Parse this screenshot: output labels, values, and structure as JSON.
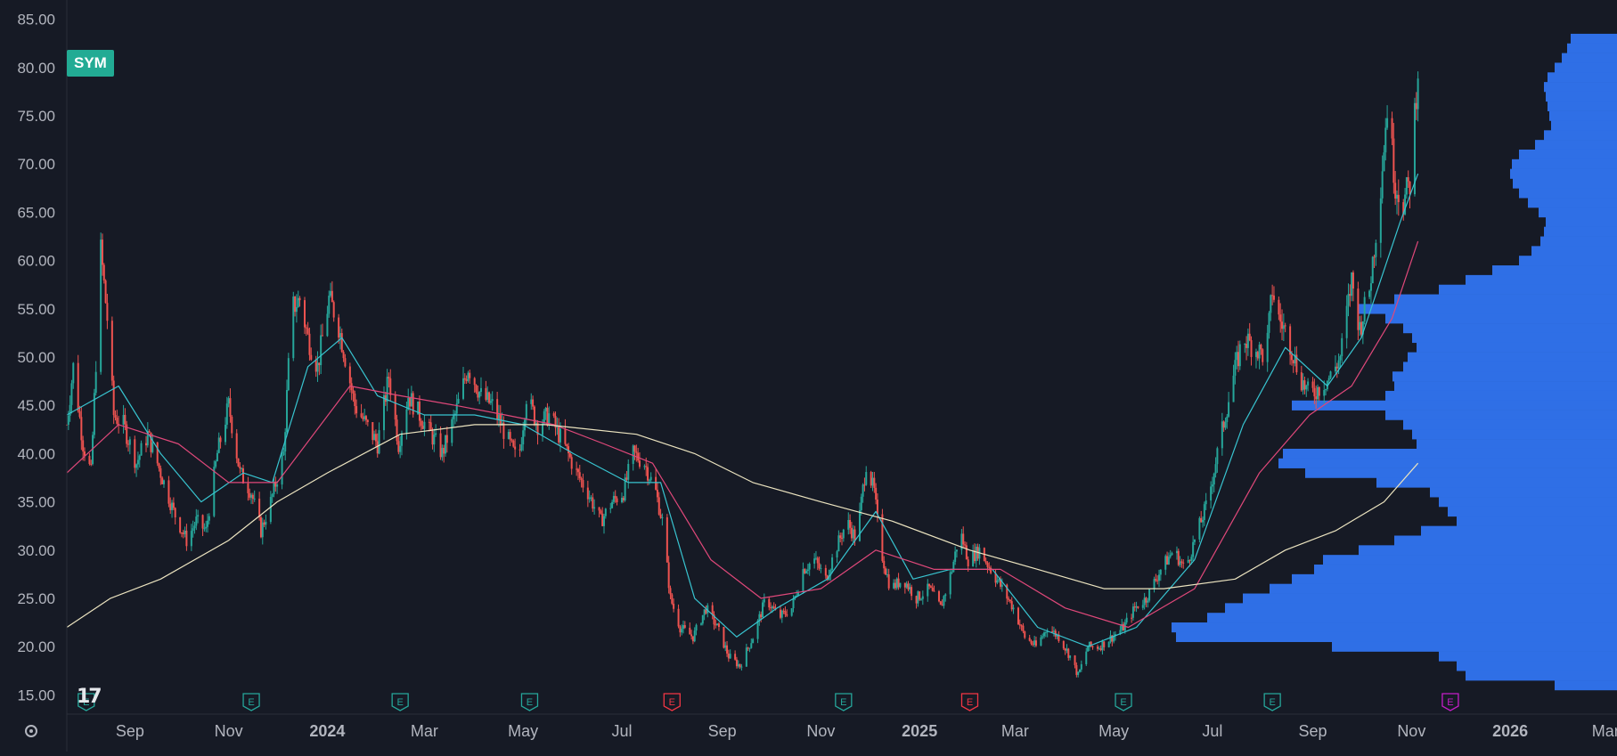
{
  "symbol": {
    "label": "SYM"
  },
  "colors": {
    "background": "#161a25",
    "up": "#26a69a",
    "down": "#ef5350",
    "ma_fast": "#38c4d0",
    "ma_mid": "#e0487a",
    "ma_slow": "#ece4c0",
    "volume_profile": "#2f6fe6",
    "earnings_past": "#26a69a",
    "earnings_negative": "#f23645",
    "earnings_upcoming": "#c41ec7",
    "axis_text": "#b2b5be"
  },
  "icons": {
    "logo": "tradingview-logo-icon",
    "settings": "settings-icon"
  },
  "chart_data": {
    "type": "candlestick",
    "y_axis": {
      "ylim": [
        13,
        87
      ],
      "ticks": [
        "85.00",
        "80.00",
        "75.00",
        "70.00",
        "65.00",
        "60.00",
        "55.00",
        "50.00",
        "45.00",
        "40.00",
        "35.00",
        "30.00",
        "25.00",
        "20.00",
        "15.00"
      ]
    },
    "x_axis": {
      "range": [
        "2023-07-24",
        "2026-03-08"
      ],
      "ticks": [
        {
          "date": "2023-09-01",
          "label": "Sep",
          "bold": false
        },
        {
          "date": "2023-11-01",
          "label": "Nov",
          "bold": false
        },
        {
          "date": "2024-01-01",
          "label": "2024",
          "bold": true
        },
        {
          "date": "2024-03-01",
          "label": "Mar",
          "bold": false
        },
        {
          "date": "2024-05-01",
          "label": "May",
          "bold": false
        },
        {
          "date": "2024-07-01",
          "label": "Jul",
          "bold": false
        },
        {
          "date": "2024-09-01",
          "label": "Sep",
          "bold": false
        },
        {
          "date": "2024-11-01",
          "label": "Nov",
          "bold": false
        },
        {
          "date": "2025-01-01",
          "label": "2025",
          "bold": true
        },
        {
          "date": "2025-03-01",
          "label": "Mar",
          "bold": false
        },
        {
          "date": "2025-05-01",
          "label": "May",
          "bold": false
        },
        {
          "date": "2025-07-01",
          "label": "Jul",
          "bold": false
        },
        {
          "date": "2025-09-01",
          "label": "Sep",
          "bold": false
        },
        {
          "date": "2025-11-01",
          "label": "Nov",
          "bold": false
        },
        {
          "date": "2026-01-01",
          "label": "2026",
          "bold": true
        },
        {
          "date": "2026-03-01",
          "label": "Mar",
          "bold": false
        }
      ]
    },
    "price_path": [
      [
        "2023-07-24",
        43
      ],
      [
        "2023-07-28",
        49
      ],
      [
        "2023-08-03",
        41
      ],
      [
        "2023-08-08",
        38
      ],
      [
        "2023-08-14",
        61
      ],
      [
        "2023-08-18",
        54
      ],
      [
        "2023-08-22",
        44
      ],
      [
        "2023-08-28",
        43
      ],
      [
        "2023-09-05",
        39
      ],
      [
        "2023-09-12",
        42
      ],
      [
        "2023-09-20",
        38
      ],
      [
        "2023-09-28",
        34
      ],
      [
        "2023-10-06",
        31
      ],
      [
        "2023-10-12",
        33
      ],
      [
        "2023-10-18",
        32
      ],
      [
        "2023-10-25",
        40
      ],
      [
        "2023-11-01",
        45
      ],
      [
        "2023-11-08",
        38
      ],
      [
        "2023-11-15",
        36
      ],
      [
        "2023-11-21",
        32
      ],
      [
        "2023-11-27",
        35
      ],
      [
        "2023-12-05",
        40
      ],
      [
        "2023-12-10",
        55
      ],
      [
        "2023-12-15",
        56
      ],
      [
        "2023-12-20",
        52
      ],
      [
        "2023-12-26",
        49
      ],
      [
        "2024-01-02",
        56
      ],
      [
        "2024-01-07",
        54
      ],
      [
        "2024-01-12",
        50
      ],
      [
        "2024-01-18",
        45
      ],
      [
        "2024-01-25",
        43
      ],
      [
        "2024-02-01",
        41
      ],
      [
        "2024-02-08",
        48
      ],
      [
        "2024-02-14",
        41
      ],
      [
        "2024-02-20",
        46
      ],
      [
        "2024-02-27",
        44
      ],
      [
        "2024-03-05",
        42
      ],
      [
        "2024-03-12",
        40
      ],
      [
        "2024-03-20",
        44
      ],
      [
        "2024-03-28",
        49
      ],
      [
        "2024-04-05",
        46
      ],
      [
        "2024-04-12",
        45
      ],
      [
        "2024-04-20",
        42
      ],
      [
        "2024-04-28",
        39
      ],
      [
        "2024-05-03",
        46
      ],
      [
        "2024-05-10",
        43
      ],
      [
        "2024-05-17",
        44
      ],
      [
        "2024-05-26",
        41
      ],
      [
        "2024-06-03",
        38
      ],
      [
        "2024-06-10",
        36
      ],
      [
        "2024-06-18",
        33
      ],
      [
        "2024-06-25",
        35
      ],
      [
        "2024-07-02",
        36
      ],
      [
        "2024-07-08",
        40
      ],
      [
        "2024-07-15",
        39
      ],
      [
        "2024-07-22",
        36
      ],
      [
        "2024-07-26",
        33
      ],
      [
        "2024-07-31",
        25
      ],
      [
        "2024-08-06",
        22
      ],
      [
        "2024-08-14",
        21
      ],
      [
        "2024-08-22",
        24
      ],
      [
        "2024-08-29",
        22
      ],
      [
        "2024-09-05",
        19
      ],
      [
        "2024-09-12",
        18
      ],
      [
        "2024-09-20",
        21
      ],
      [
        "2024-09-28",
        25
      ],
      [
        "2024-10-06",
        23
      ],
      [
        "2024-10-14",
        24
      ],
      [
        "2024-10-21",
        28
      ],
      [
        "2024-10-28",
        29
      ],
      [
        "2024-11-04",
        27
      ],
      [
        "2024-11-10",
        30
      ],
      [
        "2024-11-17",
        33
      ],
      [
        "2024-11-23",
        31
      ],
      [
        "2024-11-29",
        39
      ],
      [
        "2024-12-04",
        36
      ],
      [
        "2024-12-08",
        30
      ],
      [
        "2024-12-14",
        26
      ],
      [
        "2024-12-22",
        27
      ],
      [
        "2024-12-30",
        25
      ],
      [
        "2025-01-07",
        26
      ],
      [
        "2025-01-14",
        24
      ],
      [
        "2025-01-21",
        28
      ],
      [
        "2025-01-26",
        32
      ],
      [
        "2025-01-31",
        29
      ],
      [
        "2025-02-07",
        30
      ],
      [
        "2025-02-14",
        28
      ],
      [
        "2025-02-21",
        26
      ],
      [
        "2025-02-28",
        24
      ],
      [
        "2025-03-07",
        21
      ],
      [
        "2025-03-14",
        20
      ],
      [
        "2025-03-21",
        22
      ],
      [
        "2025-03-28",
        21
      ],
      [
        "2025-04-04",
        19
      ],
      [
        "2025-04-09",
        17
      ],
      [
        "2025-04-15",
        20
      ],
      [
        "2025-04-22",
        20
      ],
      [
        "2025-04-30",
        21
      ],
      [
        "2025-05-07",
        22
      ],
      [
        "2025-05-14",
        24
      ],
      [
        "2025-05-21",
        25
      ],
      [
        "2025-05-30",
        28
      ],
      [
        "2025-06-07",
        30
      ],
      [
        "2025-06-14",
        28
      ],
      [
        "2025-06-22",
        32
      ],
      [
        "2025-06-28",
        35
      ],
      [
        "2025-07-04",
        40
      ],
      [
        "2025-07-09",
        44
      ],
      [
        "2025-07-14",
        48
      ],
      [
        "2025-07-20",
        52
      ],
      [
        "2025-07-27",
        51
      ],
      [
        "2025-08-03",
        50
      ],
      [
        "2025-08-07",
        57
      ],
      [
        "2025-08-11",
        54
      ],
      [
        "2025-08-17",
        52
      ],
      [
        "2025-08-24",
        48
      ],
      [
        "2025-08-30",
        46
      ],
      [
        "2025-09-06",
        47
      ],
      [
        "2025-09-12",
        48
      ],
      [
        "2025-09-18",
        50
      ],
      [
        "2025-09-25",
        58
      ],
      [
        "2025-09-30",
        53
      ],
      [
        "2025-10-06",
        57
      ],
      [
        "2025-10-12",
        66
      ],
      [
        "2025-10-17",
        76
      ],
      [
        "2025-10-22",
        68
      ],
      [
        "2025-10-27",
        66
      ],
      [
        "2025-10-31",
        68
      ],
      [
        "2025-11-05",
        80
      ]
    ],
    "moving_averages": [
      {
        "color_key": "ma_fast",
        "points": [
          [
            "2023-07-24",
            44
          ],
          [
            "2023-08-25",
            47
          ],
          [
            "2023-09-20",
            40
          ],
          [
            "2023-10-15",
            35
          ],
          [
            "2023-11-10",
            38
          ],
          [
            "2023-11-28",
            37
          ],
          [
            "2023-12-20",
            49
          ],
          [
            "2024-01-10",
            52
          ],
          [
            "2024-02-01",
            46
          ],
          [
            "2024-03-01",
            44
          ],
          [
            "2024-04-01",
            44
          ],
          [
            "2024-05-01",
            43
          ],
          [
            "2024-06-01",
            40
          ],
          [
            "2024-07-05",
            37
          ],
          [
            "2024-07-25",
            37
          ],
          [
            "2024-08-15",
            25
          ],
          [
            "2024-09-10",
            21
          ],
          [
            "2024-10-05",
            24
          ],
          [
            "2024-11-05",
            27
          ],
          [
            "2024-12-05",
            34
          ],
          [
            "2024-12-28",
            27
          ],
          [
            "2025-01-20",
            28
          ],
          [
            "2025-02-15",
            28
          ],
          [
            "2025-03-15",
            22
          ],
          [
            "2025-04-15",
            20
          ],
          [
            "2025-05-15",
            22
          ],
          [
            "2025-06-20",
            29
          ],
          [
            "2025-07-20",
            43
          ],
          [
            "2025-08-15",
            51
          ],
          [
            "2025-09-10",
            47
          ],
          [
            "2025-10-01",
            52
          ],
          [
            "2025-10-25",
            64
          ],
          [
            "2025-11-05",
            69
          ]
        ]
      },
      {
        "color_key": "ma_mid",
        "points": [
          [
            "2023-07-24",
            38
          ],
          [
            "2023-08-25",
            43
          ],
          [
            "2023-10-01",
            41
          ],
          [
            "2023-11-01",
            37
          ],
          [
            "2023-12-01",
            37
          ],
          [
            "2024-01-15",
            47
          ],
          [
            "2024-02-15",
            46
          ],
          [
            "2024-03-20",
            45
          ],
          [
            "2024-04-20",
            44
          ],
          [
            "2024-05-20",
            43
          ],
          [
            "2024-06-20",
            41
          ],
          [
            "2024-07-20",
            39
          ],
          [
            "2024-08-25",
            29
          ],
          [
            "2024-09-25",
            25
          ],
          [
            "2024-11-01",
            26
          ],
          [
            "2024-12-05",
            30
          ],
          [
            "2025-01-10",
            28
          ],
          [
            "2025-02-20",
            28
          ],
          [
            "2025-04-01",
            24
          ],
          [
            "2025-05-10",
            22
          ],
          [
            "2025-06-20",
            26
          ],
          [
            "2025-07-30",
            38
          ],
          [
            "2025-08-30",
            44
          ],
          [
            "2025-09-25",
            47
          ],
          [
            "2025-10-20",
            54
          ],
          [
            "2025-11-05",
            62
          ]
        ]
      },
      {
        "color_key": "ma_slow",
        "points": [
          [
            "2023-07-24",
            22
          ],
          [
            "2023-08-20",
            25
          ],
          [
            "2023-09-20",
            27
          ],
          [
            "2023-11-01",
            31
          ],
          [
            "2023-12-01",
            35
          ],
          [
            "2024-01-01",
            38
          ],
          [
            "2024-02-15",
            42
          ],
          [
            "2024-04-01",
            43
          ],
          [
            "2024-05-15",
            43
          ],
          [
            "2024-07-10",
            42
          ],
          [
            "2024-08-15",
            40
          ],
          [
            "2024-09-20",
            37
          ],
          [
            "2024-11-01",
            35
          ],
          [
            "2024-12-15",
            33
          ],
          [
            "2025-02-01",
            30
          ],
          [
            "2025-03-15",
            28
          ],
          [
            "2025-04-25",
            26
          ],
          [
            "2025-06-01",
            26
          ],
          [
            "2025-07-15",
            27
          ],
          [
            "2025-08-15",
            30
          ],
          [
            "2025-09-15",
            32
          ],
          [
            "2025-10-15",
            35
          ],
          [
            "2025-11-05",
            39
          ]
        ]
      }
    ],
    "volume_profile": [
      [
        83,
        52
      ],
      [
        82,
        56
      ],
      [
        81,
        62
      ],
      [
        80,
        70
      ],
      [
        79,
        78
      ],
      [
        78,
        82
      ],
      [
        77,
        80
      ],
      [
        76,
        78
      ],
      [
        75,
        76
      ],
      [
        74,
        74
      ],
      [
        73,
        82
      ],
      [
        72,
        92
      ],
      [
        71,
        110
      ],
      [
        70,
        118
      ],
      [
        69,
        120
      ],
      [
        68,
        117
      ],
      [
        67,
        110
      ],
      [
        66,
        100
      ],
      [
        65,
        88
      ],
      [
        64,
        80
      ],
      [
        63,
        82
      ],
      [
        62,
        86
      ],
      [
        61,
        96
      ],
      [
        60,
        110
      ],
      [
        59,
        140
      ],
      [
        58,
        170
      ],
      [
        57,
        200
      ],
      [
        56,
        250
      ],
      [
        55,
        290
      ],
      [
        54,
        260
      ],
      [
        53,
        240
      ],
      [
        52,
        230
      ],
      [
        51,
        225
      ],
      [
        50,
        235
      ],
      [
        49,
        240
      ],
      [
        48,
        252
      ],
      [
        47,
        250
      ],
      [
        46,
        260
      ],
      [
        45,
        365
      ],
      [
        44,
        260
      ],
      [
        43,
        240
      ],
      [
        42,
        230
      ],
      [
        41,
        225
      ],
      [
        40,
        375
      ],
      [
        39,
        380
      ],
      [
        38,
        350
      ],
      [
        37,
        270
      ],
      [
        36,
        210
      ],
      [
        35,
        200
      ],
      [
        34,
        190
      ],
      [
        33,
        180
      ],
      [
        32,
        220
      ],
      [
        31,
        250
      ],
      [
        30,
        290
      ],
      [
        29,
        330
      ],
      [
        28,
        340
      ],
      [
        27,
        365
      ],
      [
        26,
        390
      ],
      [
        25,
        420
      ],
      [
        24,
        440
      ],
      [
        23,
        460
      ],
      [
        22,
        500
      ],
      [
        21,
        495
      ],
      [
        20,
        320
      ],
      [
        19,
        200
      ],
      [
        18,
        180
      ],
      [
        17,
        170
      ],
      [
        16,
        70
      ]
    ],
    "earnings_markers": [
      {
        "date": "2023-08-05",
        "type": "past"
      },
      {
        "date": "2023-11-15",
        "type": "past"
      },
      {
        "date": "2024-02-15",
        "type": "past"
      },
      {
        "date": "2024-05-05",
        "type": "past"
      },
      {
        "date": "2024-08-01",
        "type": "negative"
      },
      {
        "date": "2024-11-15",
        "type": "past"
      },
      {
        "date": "2025-02-01",
        "type": "negative"
      },
      {
        "date": "2025-05-07",
        "type": "past"
      },
      {
        "date": "2025-08-07",
        "type": "past"
      },
      {
        "date": "2025-11-25",
        "type": "upcoming"
      }
    ],
    "earnings_marker_glyph": "E",
    "grid": false,
    "legend": "none"
  }
}
